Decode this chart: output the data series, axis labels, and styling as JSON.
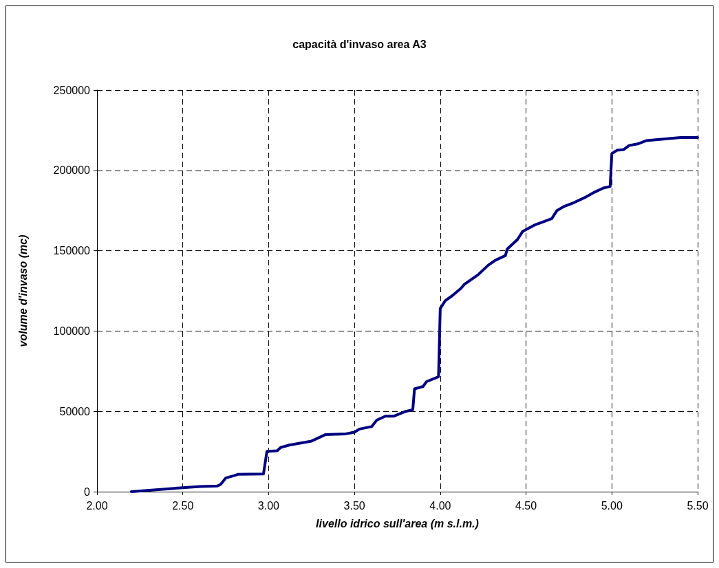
{
  "chart_data": {
    "type": "line",
    "title": "capacità d'invaso area A3",
    "xlabel": "livello idrico sull'area (m s.l.m.)",
    "ylabel": "volume d'invaso (mc)",
    "xlim": [
      2,
      5.5
    ],
    "xticks": [
      {
        "value": 2,
        "label": "2.00"
      },
      {
        "value": 2.5,
        "label": "2.50"
      },
      {
        "value": 3,
        "label": "3.00"
      },
      {
        "value": 3.5,
        "label": "3.50"
      },
      {
        "value": 4,
        "label": "4.00"
      },
      {
        "value": 4.5,
        "label": "4.50"
      },
      {
        "value": 5,
        "label": "5.00"
      },
      {
        "value": 5.5,
        "label": "5.50"
      }
    ],
    "ylim": [
      0,
      250000
    ],
    "yticks": [
      0,
      50000,
      100000,
      150000,
      200000,
      250000
    ],
    "grid": true,
    "marker": "none",
    "line_style": "solid",
    "series": [
      {
        "color": "#000080",
        "x": [
          2.2,
          2.5,
          2.6,
          2.7,
          2.72,
          2.75,
          2.8,
          2.82,
          2.97,
          2.99,
          3.05,
          3.07,
          3.12,
          3.25,
          3.33,
          3.45,
          3.5,
          3.53,
          3.6,
          3.63,
          3.68,
          3.73,
          3.8,
          3.84,
          3.85,
          3.9,
          3.92,
          3.99,
          4.0,
          4.03,
          4.07,
          4.12,
          4.14,
          4.18,
          4.22,
          4.25,
          4.28,
          4.32,
          4.38,
          4.39,
          4.45,
          4.48,
          4.55,
          4.6,
          4.65,
          4.68,
          4.72,
          4.78,
          4.85,
          4.9,
          4.95,
          4.99,
          5.0,
          5.03,
          5.07,
          5.1,
          5.15,
          5.2,
          5.3,
          5.4,
          5.5
        ],
        "values": [
          0,
          2500,
          3200,
          3500,
          4500,
          8500,
          10000,
          10800,
          11000,
          25000,
          25500,
          27500,
          29000,
          31500,
          35500,
          36000,
          37000,
          39000,
          40500,
          44500,
          47000,
          47000,
          50000,
          51000,
          64000,
          65500,
          68500,
          71500,
          114000,
          119000,
          122000,
          126500,
          129000,
          132000,
          135000,
          138000,
          141000,
          144000,
          147000,
          151000,
          157000,
          162000,
          166000,
          168000,
          170000,
          175000,
          177500,
          180000,
          183500,
          186500,
          189000,
          190000,
          210500,
          212500,
          213000,
          215500,
          216500,
          218500,
          219500,
          220500,
          220500
        ]
      }
    ]
  }
}
